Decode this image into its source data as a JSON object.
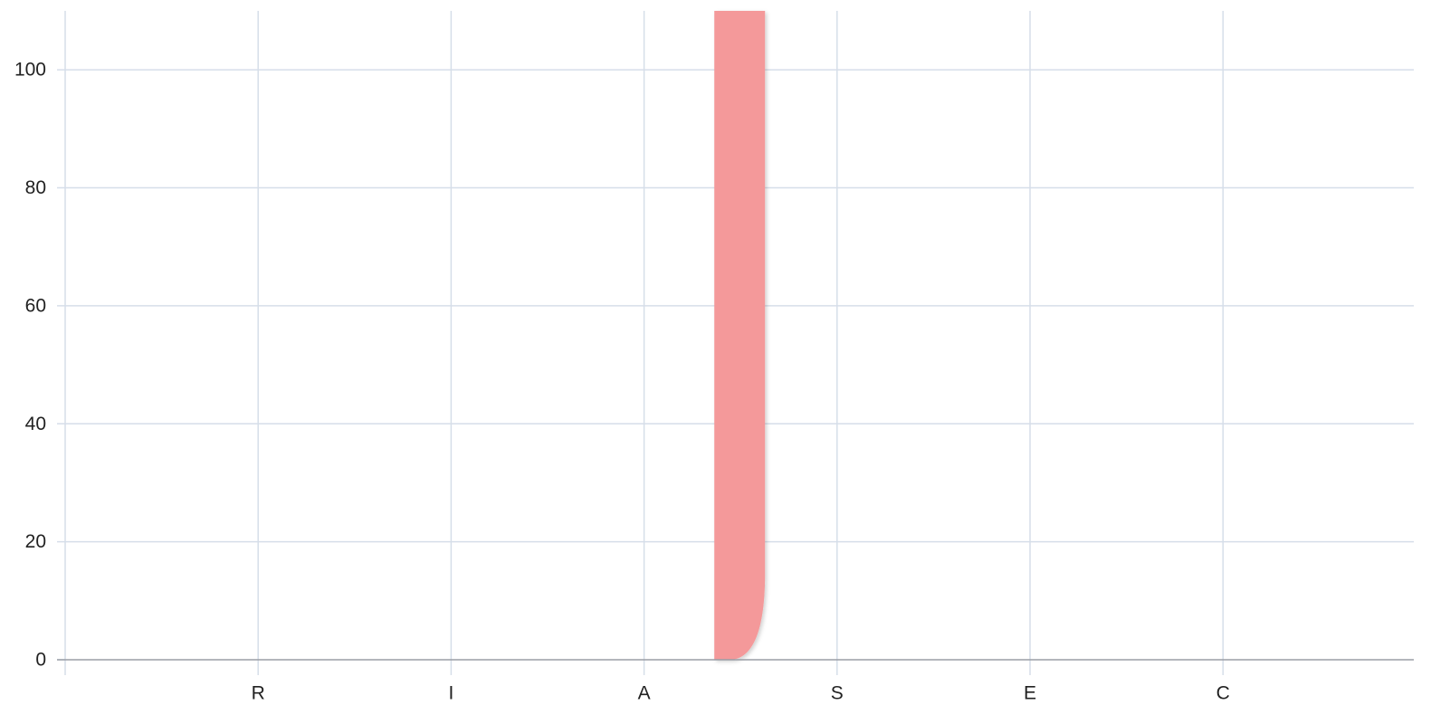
{
  "chart_data": {
    "type": "bar",
    "categories": [
      "R",
      "I",
      "A",
      "S",
      "E",
      "C"
    ],
    "y_ticks": [
      "0",
      "20",
      "40",
      "60",
      "80",
      "100"
    ],
    "ylim": [
      0,
      110
    ],
    "grid": true,
    "bars": [
      {
        "x": 3.5,
        "value": 110,
        "color": "#f4999a"
      }
    ],
    "colors": {
      "grid": "#d6dee9",
      "axis": "#9a9ea6",
      "bar": "#f4999a"
    }
  }
}
